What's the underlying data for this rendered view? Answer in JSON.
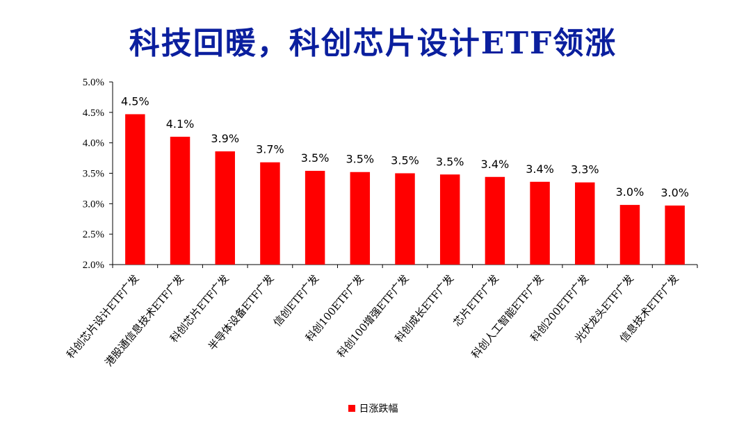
{
  "title": "科技回暖，科创芯片设计ETF领涨",
  "legend_label": "日涨跌幅",
  "colors": {
    "bar": "#ff0000",
    "title": "#0b1f9e"
  },
  "chart_data": {
    "type": "bar",
    "title": "科技回暖，科创芯片设计ETF领涨",
    "xlabel": "",
    "ylabel": "",
    "ylim": [
      0.02,
      0.05
    ],
    "yticks": [
      0.02,
      0.025,
      0.03,
      0.035,
      0.04,
      0.045,
      0.05
    ],
    "ytick_labels": [
      "2.0%",
      "2.5%",
      "3.0%",
      "3.5%",
      "4.0%",
      "4.5%",
      "5.0%"
    ],
    "grid": false,
    "legend_position": "bottom",
    "categories": [
      "科创芯片设计ETF广发",
      "港股通信息技术ETF广发",
      "科创芯片ETF广发",
      "半导体设备ETF广发",
      "信创ETF广发",
      "科创100ETF广发",
      "科创100增强ETF广发",
      "科创成长ETF广发",
      "芯片ETF广发",
      "科创人工智能ETF广发",
      "科创200ETF广发",
      "光伏龙头ETF广发",
      "信息技术ETF广发"
    ],
    "series": [
      {
        "name": "日涨跌幅",
        "values": [
          0.0447,
          0.041,
          0.0386,
          0.0368,
          0.0354,
          0.0352,
          0.035,
          0.0348,
          0.0344,
          0.0336,
          0.0335,
          0.0298,
          0.0297
        ],
        "data_labels": [
          "4.5%",
          "4.1%",
          "3.9%",
          "3.7%",
          "3.5%",
          "3.5%",
          "3.5%",
          "3.5%",
          "3.4%",
          "3.4%",
          "3.3%",
          "3.0%",
          "3.0%"
        ]
      }
    ]
  }
}
